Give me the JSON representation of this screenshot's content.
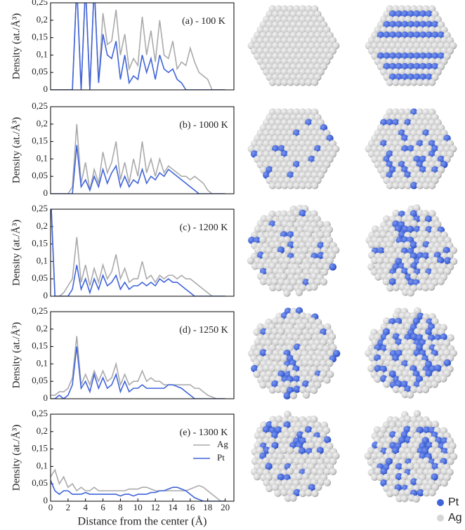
{
  "chart_data": [
    {
      "type": "line",
      "annotation": "(a) - 100 K",
      "ylabel": "Density (at./Å³)",
      "x": [
        0,
        0.5,
        1,
        1.5,
        2,
        2.5,
        3,
        3.5,
        4,
        4.5,
        5,
        5.5,
        6,
        6.5,
        7,
        7.5,
        8,
        8.5,
        9,
        9.5,
        10,
        10.5,
        11,
        11.5,
        12,
        12.5,
        13,
        13.5,
        14,
        14.5,
        15,
        15.5,
        16,
        16.5,
        17,
        17.5,
        18,
        18.5,
        19,
        19.5,
        20
      ],
      "series": [
        {
          "color": "#aaaaaa",
          "values": [
            0,
            0,
            0,
            0,
            0,
            0,
            0.3,
            0,
            0.3,
            0,
            0.3,
            0.02,
            0.22,
            0.13,
            0.14,
            0.23,
            0.1,
            0.16,
            0.06,
            0.09,
            0.07,
            0.21,
            0.1,
            0.17,
            0.08,
            0.2,
            0.1,
            0.09,
            0.14,
            0.06,
            0.08,
            0.07,
            0.12,
            0.08,
            0.05,
            0.04,
            0.03,
            0,
            0,
            0,
            0
          ]
        },
        {
          "color": "#3f63d9",
          "values": [
            0,
            0,
            0,
            0,
            0,
            0,
            0.3,
            0,
            0.3,
            0,
            0.3,
            0.02,
            0.16,
            0.1,
            0.09,
            0.14,
            0.03,
            0.1,
            0.02,
            0.04,
            0.03,
            0.1,
            0.05,
            0.09,
            0.03,
            0.1,
            0.06,
            0.05,
            0.06,
            0.03,
            0.02,
            0,
            0,
            0,
            0,
            0,
            0,
            0,
            0,
            0,
            0
          ]
        }
      ],
      "xlim": [
        0,
        21
      ],
      "ylim": [
        0,
        0.25
      ],
      "yticks": [
        0,
        {
          "value": 0.05,
          "label": "0,05"
        },
        {
          "value": 0.1,
          "label": "0,1"
        },
        {
          "value": 0.15,
          "label": "0,15"
        },
        {
          "value": 0.2,
          "label": "0,2"
        },
        {
          "value": 0.25,
          "label": "0,25"
        }
      ]
    },
    {
      "type": "line",
      "annotation": "(b) - 1000 K",
      "ylabel": "Density (at./Å³)",
      "x": [
        0,
        0.5,
        1,
        1.5,
        2,
        2.5,
        3,
        3.5,
        4,
        4.5,
        5,
        5.5,
        6,
        6.5,
        7,
        7.5,
        8,
        8.5,
        9,
        9.5,
        10,
        10.5,
        11,
        11.5,
        12,
        12.5,
        13,
        13.5,
        14,
        14.5,
        15,
        15.5,
        16,
        16.5,
        17,
        17.5,
        18,
        18.5,
        19,
        19.5,
        20
      ],
      "series": [
        {
          "color": "#aaaaaa",
          "values": [
            0,
            0,
            0,
            0,
            0,
            0.02,
            0.2,
            0.03,
            0.09,
            0.01,
            0.07,
            0.03,
            0.12,
            0.06,
            0.09,
            0.15,
            0.04,
            0.09,
            0.03,
            0.1,
            0.05,
            0.15,
            0.06,
            0.1,
            0.05,
            0.1,
            0.06,
            0.08,
            0.07,
            0.06,
            0.05,
            0.05,
            0.04,
            0.05,
            0.04,
            0.03,
            0.01,
            0,
            0,
            0,
            0
          ]
        },
        {
          "color": "#3f63d9",
          "values": [
            0,
            0,
            0,
            0,
            0,
            0,
            0.14,
            0.02,
            0.04,
            0.01,
            0.05,
            0.02,
            0.07,
            0.03,
            0.06,
            0.08,
            0.02,
            0.05,
            0.02,
            0.04,
            0.03,
            0.07,
            0.03,
            0.05,
            0.04,
            0.06,
            0.05,
            0.07,
            0.06,
            0.05,
            0.04,
            0.03,
            0.02,
            0.01,
            0,
            0,
            0,
            0,
            0,
            0,
            0
          ]
        }
      ],
      "xlim": [
        0,
        21
      ],
      "ylim": [
        0,
        0.25
      ],
      "yticks": [
        0,
        {
          "value": 0.05,
          "label": "0,05"
        },
        {
          "value": 0.1,
          "label": "0,1"
        },
        {
          "value": 0.15,
          "label": "0,15"
        },
        {
          "value": 0.2,
          "label": "0,2"
        },
        {
          "value": 0.25,
          "label": "0,25"
        }
      ]
    },
    {
      "type": "line",
      "annotation": "(c) - 1200 K",
      "ylabel": "Density (at./Å³)",
      "x": [
        0,
        0.5,
        1,
        1.5,
        2,
        2.5,
        3,
        3.5,
        4,
        4.5,
        5,
        5.5,
        6,
        6.5,
        7,
        7.5,
        8,
        8.5,
        9,
        9.5,
        10,
        10.5,
        11,
        11.5,
        12,
        12.5,
        13,
        13.5,
        14,
        14.5,
        15,
        15.5,
        16,
        16.5,
        17,
        17.5,
        18,
        18.5,
        19,
        19.5,
        20
      ],
      "series": [
        {
          "color": "#aaaaaa",
          "values": [
            0.3,
            0,
            0,
            0.01,
            0.03,
            0.05,
            0.17,
            0.04,
            0.09,
            0.03,
            0.08,
            0.04,
            0.09,
            0.05,
            0.07,
            0.12,
            0.05,
            0.08,
            0.04,
            0.05,
            0.05,
            0.1,
            0.05,
            0.06,
            0.04,
            0.06,
            0.05,
            0.06,
            0.06,
            0.05,
            0.06,
            0.05,
            0.05,
            0.04,
            0.03,
            0.02,
            0.01,
            0,
            0,
            0,
            0
          ]
        },
        {
          "color": "#3f63d9",
          "values": [
            0.3,
            0,
            0,
            0,
            0,
            0.02,
            0.09,
            0.02,
            0.05,
            0.01,
            0.05,
            0.02,
            0.06,
            0.03,
            0.04,
            0.06,
            0.02,
            0.04,
            0.02,
            0.03,
            0.03,
            0.04,
            0.03,
            0.04,
            0.03,
            0.05,
            0.04,
            0.05,
            0.04,
            0.04,
            0.03,
            0.02,
            0.01,
            0,
            0,
            0,
            0,
            0,
            0,
            0,
            0
          ]
        }
      ],
      "xlim": [
        0,
        21
      ],
      "ylim": [
        0,
        0.25
      ],
      "yticks": [
        0,
        {
          "value": 0.05,
          "label": "0,05"
        },
        {
          "value": 0.1,
          "label": "0,1"
        },
        {
          "value": 0.15,
          "label": "0,15"
        },
        {
          "value": 0.2,
          "label": "0,2"
        },
        {
          "value": 0.25,
          "label": "0,25"
        }
      ]
    },
    {
      "type": "line",
      "annotation": "(d) - 1250 K",
      "ylabel": "Density (at./Å³)",
      "x": [
        0,
        0.5,
        1,
        1.5,
        2,
        2.5,
        3,
        3.5,
        4,
        4.5,
        5,
        5.5,
        6,
        6.5,
        7,
        7.5,
        8,
        8.5,
        9,
        9.5,
        10,
        10.5,
        11,
        11.5,
        12,
        12.5,
        13,
        13.5,
        14,
        14.5,
        15,
        15.5,
        16,
        16.5,
        17,
        17.5,
        18,
        18.5,
        19,
        19.5,
        20
      ],
      "series": [
        {
          "color": "#aaaaaa",
          "values": [
            0.01,
            0.01,
            0.02,
            0.02,
            0.03,
            0.06,
            0.18,
            0.04,
            0.07,
            0.04,
            0.08,
            0.05,
            0.08,
            0.05,
            0.06,
            0.1,
            0.04,
            0.07,
            0.04,
            0.05,
            0.05,
            0.08,
            0.05,
            0.06,
            0.05,
            0.05,
            0.04,
            0.04,
            0.04,
            0.04,
            0.04,
            0.04,
            0.04,
            0.03,
            0.03,
            0.02,
            0.01,
            0.005,
            0,
            0,
            0
          ]
        },
        {
          "color": "#3f63d9",
          "values": [
            0,
            0,
            0.01,
            0,
            0.01,
            0.04,
            0.15,
            0.03,
            0.05,
            0.02,
            0.07,
            0.03,
            0.06,
            0.03,
            0.04,
            0.07,
            0.02,
            0.05,
            0.02,
            0.03,
            0.03,
            0.04,
            0.03,
            0.03,
            0.03,
            0.03,
            0.03,
            0.04,
            0.04,
            0.035,
            0.03,
            0.02,
            0.01,
            0,
            0,
            0,
            0,
            0,
            0,
            0,
            0
          ]
        }
      ],
      "xlim": [
        0,
        21
      ],
      "ylim": [
        0,
        0.25
      ],
      "yticks": [
        0,
        {
          "value": 0.05,
          "label": "0,05"
        },
        {
          "value": 0.1,
          "label": "0,1"
        },
        {
          "value": 0.15,
          "label": "0,15"
        },
        {
          "value": 0.2,
          "label": "0,2"
        },
        {
          "value": 0.25,
          "label": "0,25"
        }
      ]
    },
    {
      "type": "line",
      "annotation": "(e) - 1300 K",
      "ylabel": "Density (at./Å³)",
      "xlabel": "Distance from the center (Å)",
      "x": [
        0,
        0.5,
        1,
        1.5,
        2,
        2.5,
        3,
        3.5,
        4,
        4.5,
        5,
        5.5,
        6,
        6.5,
        7,
        7.5,
        8,
        8.5,
        9,
        9.5,
        10,
        10.5,
        11,
        11.5,
        12,
        12.5,
        13,
        13.5,
        14,
        14.5,
        15,
        15.5,
        16,
        16.5,
        17,
        17.5,
        18,
        18.5,
        19,
        19.5,
        20
      ],
      "series": [
        {
          "name": "Ag",
          "color": "#aaaaaa",
          "values": [
            0.07,
            0.09,
            0.05,
            0.07,
            0.04,
            0.05,
            0.03,
            0.04,
            0.03,
            0.03,
            0.04,
            0.03,
            0.03,
            0.03,
            0.03,
            0.03,
            0.03,
            0.03,
            0.035,
            0.035,
            0.035,
            0.04,
            0.04,
            0.035,
            0.03,
            0.03,
            0.03,
            0.03,
            0.03,
            0.03,
            0.03,
            0.03,
            0.035,
            0.04,
            0.045,
            0.04,
            0.03,
            0.02,
            0.01,
            0,
            0
          ]
        },
        {
          "name": "Pt",
          "color": "#3f63d9",
          "values": [
            0.06,
            0.03,
            0.02,
            0.03,
            0.03,
            0.02,
            0.02,
            0.02,
            0.025,
            0.02,
            0.02,
            0.02,
            0.02,
            0.02,
            0.02,
            0.02,
            0.015,
            0.02,
            0.02,
            0.015,
            0.02,
            0.02,
            0.02,
            0.025,
            0.025,
            0.03,
            0.03,
            0.035,
            0.04,
            0.04,
            0.035,
            0.03,
            0.02,
            0.01,
            0.005,
            0,
            0,
            0,
            0,
            0,
            0
          ]
        }
      ],
      "xlim": [
        0,
        21
      ],
      "ylim": [
        0,
        0.25
      ],
      "xticks": [
        0,
        2,
        4,
        6,
        8,
        10,
        12,
        14,
        16,
        18,
        20
      ],
      "yticks": [
        0,
        {
          "value": 0.05,
          "label": "0,05"
        },
        {
          "value": 0.1,
          "label": "0,1"
        },
        {
          "value": 0.15,
          "label": "0,15"
        },
        {
          "value": 0.2,
          "label": "0,2"
        },
        {
          "value": 0.25,
          "label": "0,25"
        }
      ],
      "legend": "right"
    }
  ],
  "sphere_legend": [
    {
      "label": "Pt",
      "color": "#3f63d9"
    },
    {
      "label": "Ag",
      "color": "#d6d6d6"
    }
  ]
}
